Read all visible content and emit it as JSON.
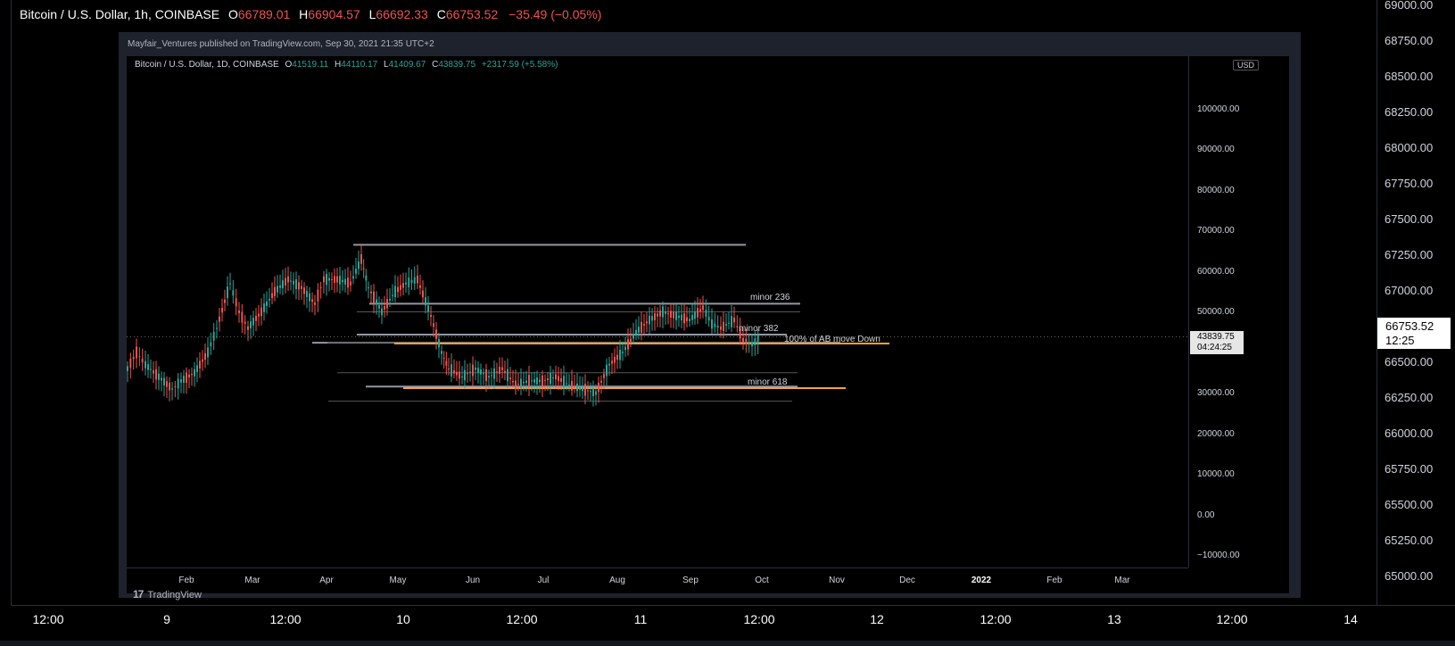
{
  "outer": {
    "legend": {
      "symbol": "Bitcoin / U.S. Dollar, 1h, COINBASE",
      "o_label": "O",
      "o": "66789.01",
      "h_label": "H",
      "h": "66904.57",
      "l_label": "L",
      "l": "66692.33",
      "c_label": "C",
      "c": "66753.52",
      "change": "−35.49 (−0.05%)"
    },
    "price_ticks": [
      "69000.00",
      "68750.00",
      "68500.00",
      "68250.00",
      "68000.00",
      "67750.00",
      "67500.00",
      "67250.00",
      "67000.00",
      "66750.00",
      "66500.00",
      "66250.00",
      "66000.00",
      "65750.00",
      "65500.00",
      "65250.00",
      "65000.00"
    ],
    "current_price": {
      "price": "66753.52",
      "countdown": "12:25"
    },
    "time_ticks": [
      "12:00",
      "9",
      "12:00",
      "10",
      "12:00",
      "11",
      "12:00",
      "12",
      "12:00",
      "13",
      "12:00",
      "14"
    ]
  },
  "snapshot": {
    "header": "Mayfair_Ventures published on TradingView.com, Sep 30, 2021 21:35 UTC+2",
    "legend": {
      "symbol": "Bitcoin / U.S. Dollar, 1D, COINBASE",
      "o_label": "O",
      "o": "41519.11",
      "h_label": "H",
      "h": "44110.17",
      "l_label": "L",
      "l": "41409.67",
      "c_label": "C",
      "c": "43839.75",
      "change": "+2317.59 (+5.58%)"
    },
    "currency": "USD",
    "price_ticks": [
      "100000.00",
      "90000.00",
      "80000.00",
      "70000.00",
      "60000.00",
      "50000.00",
      "30000.00",
      "20000.00",
      "10000.00",
      "0.00",
      "−10000.00"
    ],
    "last_price": {
      "price": "43839.75",
      "countdown": "04:24:25"
    },
    "time_ticks": [
      "Feb",
      "Mar",
      "Apr",
      "May",
      "Jun",
      "Jul",
      "Aug",
      "Sep",
      "Oct",
      "Nov",
      "Dec",
      "2022",
      "Feb",
      "Mar"
    ],
    "annotations": {
      "minor_236": "minor 236",
      "minor_382": "minor 382",
      "move_down": "100% of AB move Down",
      "minor_618": "minor 618"
    },
    "logo_text": "TradingView",
    "colors": {
      "up": "#26a69a",
      "down": "#ef5350",
      "fib_orange": "#f7a42c",
      "level_gray": "#9598a1"
    }
  }
}
